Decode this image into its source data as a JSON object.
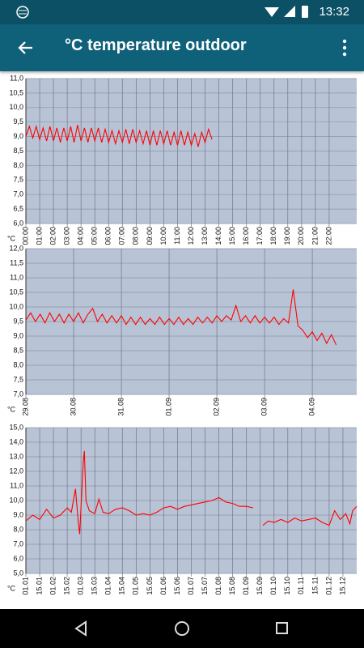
{
  "status_bar": {
    "time": "13:32"
  },
  "app_bar": {
    "title": "°C temperature outdoor"
  },
  "chart_data": [
    {
      "type": "line",
      "ylabel": "°C",
      "color": "#ff0000",
      "grid": true,
      "x": [
        0,
        0.25,
        0.5,
        0.75,
        1,
        1.25,
        1.5,
        1.75,
        2,
        2.25,
        2.5,
        2.75,
        3,
        3.25,
        3.5,
        3.75,
        4,
        4.25,
        4.5,
        4.75,
        5,
        5.25,
        5.5,
        5.75,
        6,
        6.25,
        6.5,
        6.75,
        7,
        7.25,
        7.5,
        7.75,
        8,
        8.25,
        8.5,
        8.75,
        9,
        9.25,
        9.5,
        9.75,
        10,
        10.25,
        10.5,
        10.75,
        11,
        11.25,
        11.5,
        11.75,
        12,
        12.25,
        12.5,
        12.75,
        13,
        13.25,
        13.5
      ],
      "values": [
        9.0,
        9.35,
        8.95,
        9.35,
        8.9,
        9.3,
        8.85,
        9.35,
        8.85,
        9.3,
        8.8,
        9.3,
        8.85,
        9.35,
        8.8,
        9.4,
        8.85,
        9.3,
        8.8,
        9.3,
        8.85,
        9.3,
        8.8,
        9.25,
        8.8,
        9.2,
        8.75,
        9.2,
        8.8,
        9.25,
        8.75,
        9.25,
        8.8,
        9.2,
        8.75,
        9.2,
        8.7,
        9.2,
        8.7,
        9.2,
        8.75,
        9.2,
        8.7,
        9.15,
        8.7,
        9.2,
        8.7,
        9.15,
        8.7,
        9.1,
        8.65,
        9.15,
        8.8,
        9.25,
        8.9
      ],
      "xlim": [
        0,
        24
      ],
      "xticks": [
        {
          "value": 0,
          "label": "00:00"
        },
        {
          "value": 1,
          "label": "01:00"
        },
        {
          "value": 2,
          "label": "02:00"
        },
        {
          "value": 3,
          "label": "03:00"
        },
        {
          "value": 4,
          "label": "04:00"
        },
        {
          "value": 5,
          "label": "05:00"
        },
        {
          "value": 6,
          "label": "06:00"
        },
        {
          "value": 7,
          "label": "07:00"
        },
        {
          "value": 8,
          "label": "08:00"
        },
        {
          "value": 9,
          "label": "09:00"
        },
        {
          "value": 10,
          "label": "10:00"
        },
        {
          "value": 11,
          "label": "11:00"
        },
        {
          "value": 12,
          "label": "12:00"
        },
        {
          "value": 13,
          "label": "13:00"
        },
        {
          "value": 14,
          "label": "14:00"
        },
        {
          "value": 15,
          "label": "15:00"
        },
        {
          "value": 16,
          "label": "16:00"
        },
        {
          "value": 17,
          "label": "17:00"
        },
        {
          "value": 18,
          "label": "18:00"
        },
        {
          "value": 19,
          "label": "19:00"
        },
        {
          "value": 20,
          "label": "20:00"
        },
        {
          "value": 21,
          "label": "21:00"
        },
        {
          "value": 22,
          "label": "22:00"
        }
      ],
      "ylim": [
        6,
        11
      ],
      "yticks": [
        {
          "value": 6,
          "label": "6,0"
        },
        {
          "value": 6.5,
          "label": "6,5"
        },
        {
          "value": 7,
          "label": "7,0"
        },
        {
          "value": 7.5,
          "label": "7,5"
        },
        {
          "value": 8,
          "label": "8,0"
        },
        {
          "value": 8.5,
          "label": "8,5"
        },
        {
          "value": 9,
          "label": "9,0"
        },
        {
          "value": 9.5,
          "label": "9,5"
        },
        {
          "value": 10,
          "label": "10,0"
        },
        {
          "value": 10.5,
          "label": "10,5"
        },
        {
          "value": 11,
          "label": "11,0"
        }
      ]
    },
    {
      "type": "line",
      "ylabel": "°C",
      "color": "#ff0000",
      "grid": true,
      "x": [
        0,
        0.1,
        0.2,
        0.3,
        0.4,
        0.5,
        0.6,
        0.7,
        0.8,
        0.9,
        1,
        1.1,
        1.2,
        1.3,
        1.4,
        1.5,
        1.6,
        1.7,
        1.8,
        1.9,
        2,
        2.1,
        2.2,
        2.3,
        2.4,
        2.5,
        2.6,
        2.7,
        2.8,
        2.9,
        3,
        3.1,
        3.2,
        3.3,
        3.4,
        3.5,
        3.6,
        3.7,
        3.8,
        3.9,
        4,
        4.1,
        4.2,
        4.3,
        4.4,
        4.5,
        4.6,
        4.7,
        4.8,
        4.9,
        5,
        5.1,
        5.2,
        5.3,
        5.4,
        5.5,
        5.6,
        5.7,
        5.8,
        5.9,
        6,
        6.1,
        6.2,
        6.3,
        6.4,
        6.5
      ],
      "values": [
        9.55,
        9.8,
        9.5,
        9.75,
        9.45,
        9.8,
        9.5,
        9.75,
        9.45,
        9.75,
        9.5,
        9.8,
        9.45,
        9.75,
        9.95,
        9.5,
        9.75,
        9.45,
        9.7,
        9.45,
        9.7,
        9.4,
        9.65,
        9.4,
        9.65,
        9.4,
        9.6,
        9.4,
        9.65,
        9.4,
        9.6,
        9.4,
        9.65,
        9.4,
        9.6,
        9.4,
        9.65,
        9.45,
        9.65,
        9.45,
        9.7,
        9.5,
        9.7,
        9.55,
        10.05,
        9.5,
        9.7,
        9.45,
        9.7,
        9.45,
        9.65,
        9.45,
        9.65,
        9.4,
        9.6,
        9.45,
        10.6,
        9.35,
        9.2,
        8.95,
        9.15,
        8.85,
        9.1,
        8.75,
        9.05,
        8.7
      ],
      "xlim": [
        0,
        6.93
      ],
      "xticks": [
        {
          "value": 0,
          "label": "29.08"
        },
        {
          "value": 1,
          "label": "30.08"
        },
        {
          "value": 2,
          "label": "31.08"
        },
        {
          "value": 3,
          "label": "01.09"
        },
        {
          "value": 4,
          "label": "02.09"
        },
        {
          "value": 5,
          "label": "03.09"
        },
        {
          "value": 6,
          "label": "04.09"
        }
      ],
      "ylim": [
        7,
        12
      ],
      "yticks": [
        {
          "value": 7,
          "label": "7,0"
        },
        {
          "value": 7.5,
          "label": "7,5"
        },
        {
          "value": 8,
          "label": "8,0"
        },
        {
          "value": 8.5,
          "label": "8,5"
        },
        {
          "value": 9,
          "label": "9,0"
        },
        {
          "value": 9.5,
          "label": "9,5"
        },
        {
          "value": 10,
          "label": "10,0"
        },
        {
          "value": 10.5,
          "label": "10,5"
        },
        {
          "value": 11,
          "label": "11,0"
        },
        {
          "value": 11.5,
          "label": "11,5"
        },
        {
          "value": 12,
          "label": "12,0"
        }
      ]
    },
    {
      "type": "line",
      "ylabel": "°C",
      "color": "#ff0000",
      "grid": true,
      "x": [
        0,
        0.25,
        0.5,
        0.75,
        1,
        1.25,
        1.5,
        1.65,
        1.8,
        1.9,
        1.95,
        2,
        2.08,
        2.12,
        2.18,
        2.3,
        2.5,
        2.65,
        2.8,
        3,
        3.25,
        3.5,
        3.75,
        4,
        4.25,
        4.5,
        4.75,
        5,
        5.25,
        5.5,
        5.75,
        6,
        6.25,
        6.5,
        6.75,
        7,
        7.25,
        7.5,
        7.75,
        8,
        8.24,
        8.4,
        8.6,
        8.8,
        9,
        9.25,
        9.5,
        9.75,
        10,
        10.25,
        10.5,
        10.75,
        11,
        11.2,
        11.4,
        11.6,
        11.75,
        11.85,
        12
      ],
      "values": [
        8.6,
        9.0,
        8.7,
        9.4,
        8.8,
        9.0,
        9.5,
        9.2,
        10.8,
        8.5,
        7.7,
        9.6,
        12.6,
        13.4,
        10.0,
        9.3,
        9.1,
        10.1,
        9.2,
        9.1,
        9.4,
        9.5,
        9.3,
        9.0,
        9.1,
        9.0,
        9.2,
        9.5,
        9.6,
        9.4,
        9.6,
        9.7,
        9.8,
        9.9,
        10.0,
        10.2,
        9.9,
        9.8,
        9.6,
        9.6,
        9.5,
        null,
        8.3,
        8.6,
        8.5,
        8.7,
        8.5,
        8.8,
        8.6,
        8.7,
        8.8,
        8.5,
        8.3,
        9.3,
        8.7,
        9.1,
        8.4,
        9.3,
        9.6
      ],
      "xlim": [
        0,
        12
      ],
      "xticks": [
        {
          "value": 0,
          "label": "01.01"
        },
        {
          "value": 0.5,
          "label": "15.01"
        },
        {
          "value": 1,
          "label": "01.02"
        },
        {
          "value": 1.5,
          "label": "15.02"
        },
        {
          "value": 2,
          "label": "01.03"
        },
        {
          "value": 2.5,
          "label": "15.03"
        },
        {
          "value": 3,
          "label": "01.04"
        },
        {
          "value": 3.5,
          "label": "15.04"
        },
        {
          "value": 4,
          "label": "01.05"
        },
        {
          "value": 4.5,
          "label": "15.05"
        },
        {
          "value": 5,
          "label": "01.06"
        },
        {
          "value": 5.5,
          "label": "15.06"
        },
        {
          "value": 6,
          "label": "01.07"
        },
        {
          "value": 6.5,
          "label": "15.07"
        },
        {
          "value": 7,
          "label": "01.08"
        },
        {
          "value": 7.5,
          "label": "15.08"
        },
        {
          "value": 8,
          "label": "01.09"
        },
        {
          "value": 8.5,
          "label": "15.09"
        },
        {
          "value": 9,
          "label": "01.10"
        },
        {
          "value": 9.5,
          "label": "15.10"
        },
        {
          "value": 10,
          "label": "01.11"
        },
        {
          "value": 10.5,
          "label": "15.11"
        },
        {
          "value": 11,
          "label": "01.12"
        },
        {
          "value": 11.5,
          "label": "15.12"
        }
      ],
      "ylim": [
        5,
        15
      ],
      "yticks": [
        {
          "value": 5,
          "label": "5,0"
        },
        {
          "value": 6,
          "label": "6,0"
        },
        {
          "value": 7,
          "label": "7,0"
        },
        {
          "value": 8,
          "label": "8,0"
        },
        {
          "value": 9,
          "label": "9,0"
        },
        {
          "value": 10,
          "label": "10,0"
        },
        {
          "value": 11,
          "label": "11,0"
        },
        {
          "value": 12,
          "label": "12,0"
        },
        {
          "value": 13,
          "label": "13,0"
        },
        {
          "value": 14,
          "label": "14,0"
        },
        {
          "value": 15,
          "label": "15,0"
        }
      ]
    }
  ]
}
